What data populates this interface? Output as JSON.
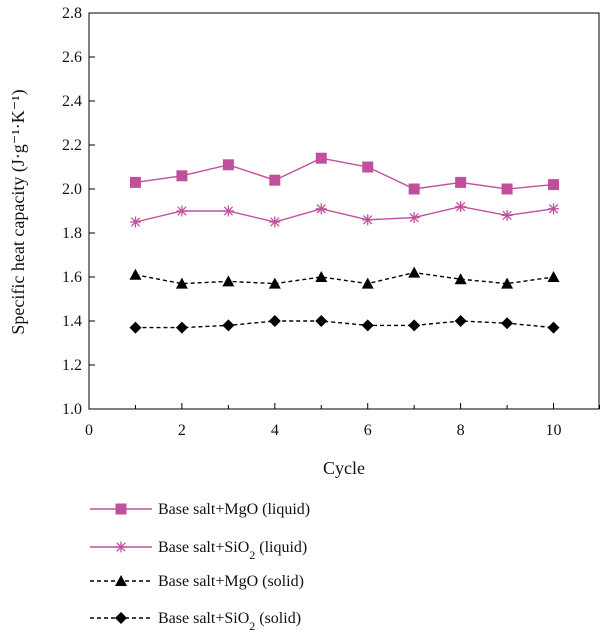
{
  "chart_data": {
    "type": "line",
    "title": "",
    "xlabel": "Cycle",
    "ylabel": "Specific heat capacity (J·g⁻¹·K⁻¹)",
    "xlim": [
      0,
      11
    ],
    "ylim": [
      1.0,
      2.8
    ],
    "x_ticks": [
      "0",
      "2",
      "4",
      "6",
      "8",
      "10"
    ],
    "y_ticks": [
      "1.0",
      "1.2",
      "1.4",
      "1.6",
      "1.8",
      "2.0",
      "2.2",
      "2.4",
      "2.6",
      "2.8"
    ],
    "x": [
      1,
      2,
      3,
      4,
      5,
      6,
      7,
      8,
      9,
      10
    ],
    "legend_position": "bottom",
    "series": [
      {
        "name": "Base salt+MgO (liquid)",
        "name_parts": [
          "Base salt+MgO (liquid)",
          "",
          ""
        ],
        "values": [
          2.03,
          2.06,
          2.11,
          2.04,
          2.14,
          2.1,
          2.0,
          2.03,
          2.0,
          2.02
        ],
        "color": "#c0509c",
        "marker": "square",
        "line_style": "solid"
      },
      {
        "name": "Base salt+SiO2 (liquid)",
        "name_parts": [
          "Base salt+SiO",
          "2",
          " (liquid)"
        ],
        "values": [
          1.85,
          1.9,
          1.9,
          1.85,
          1.91,
          1.86,
          1.87,
          1.92,
          1.88,
          1.91
        ],
        "color": "#c0509c",
        "marker": "asterisk",
        "line_style": "solid"
      },
      {
        "name": "Base salt+MgO (solid)",
        "name_parts": [
          "Base salt+MgO (solid)",
          "",
          ""
        ],
        "values": [
          1.61,
          1.57,
          1.58,
          1.57,
          1.6,
          1.57,
          1.62,
          1.59,
          1.57,
          1.6
        ],
        "color": "#000000",
        "marker": "triangle",
        "line_style": "dashed"
      },
      {
        "name": "Base salt+SiO2 (solid)",
        "name_parts": [
          "Base salt+SiO",
          "2",
          " (solid)"
        ],
        "values": [
          1.37,
          1.37,
          1.38,
          1.4,
          1.4,
          1.38,
          1.38,
          1.4,
          1.39,
          1.37
        ],
        "color": "#000000",
        "marker": "diamond",
        "line_style": "dashed"
      }
    ]
  }
}
